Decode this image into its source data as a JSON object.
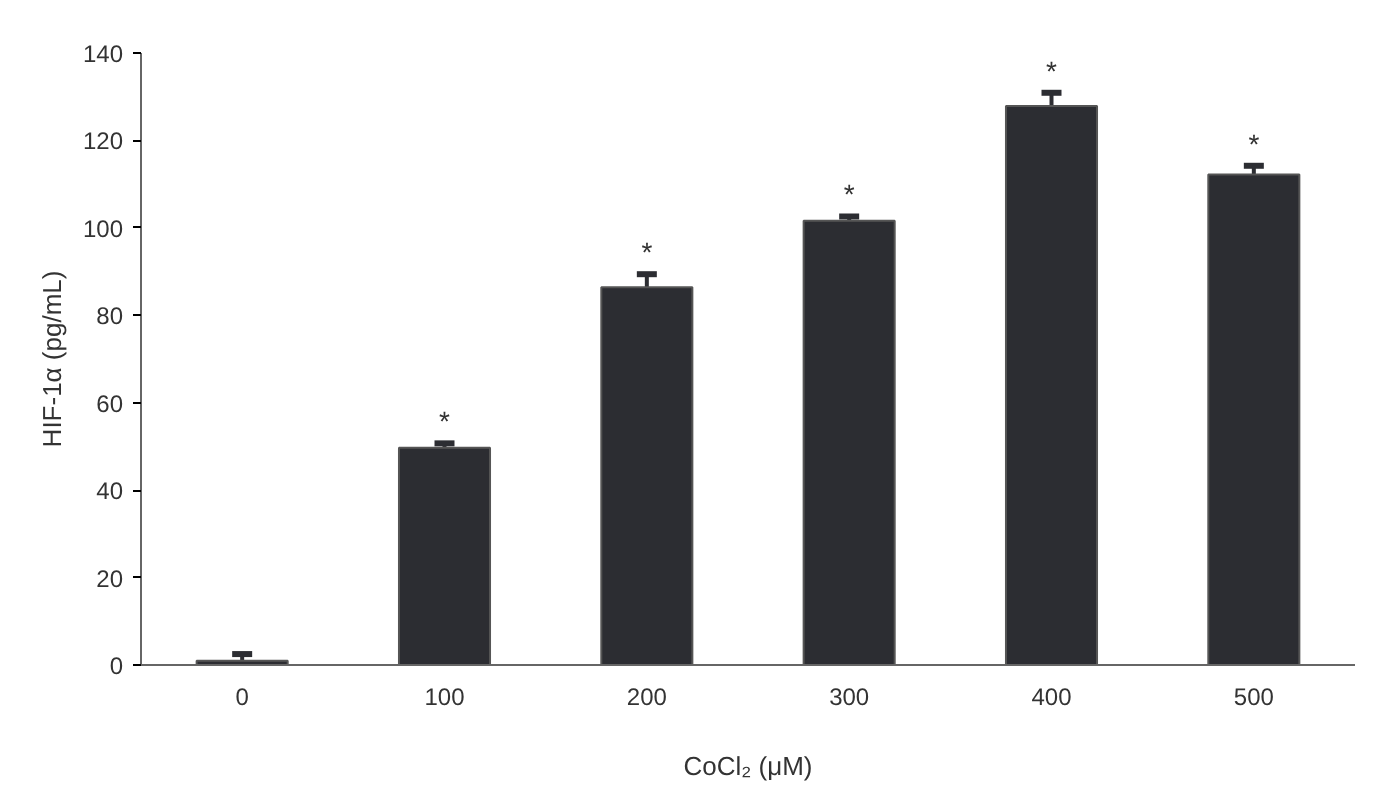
{
  "chart_data": {
    "type": "bar",
    "xlabel": "CoCl₂ (μM)",
    "ylabel": "HIF-1α (pg/mL)",
    "categories": [
      "0",
      "100",
      "200",
      "300",
      "400",
      "500"
    ],
    "values": [
      1,
      49.7,
      86.4,
      101.6,
      127.9,
      112.2
    ],
    "errors": [
      1.5,
      1,
      3,
      1,
      3,
      2
    ],
    "color": "#2c2d32",
    "ylim": [
      0,
      140
    ],
    "yticks": [
      0,
      20,
      40,
      60,
      80,
      100,
      120,
      140
    ],
    "grid": false,
    "annotations": [
      null,
      "*",
      "*",
      "*",
      "*",
      "*"
    ]
  }
}
